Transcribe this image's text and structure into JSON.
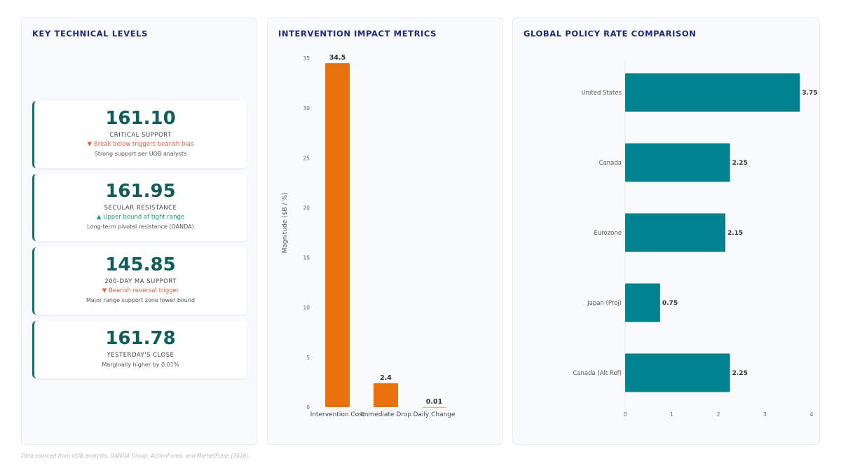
{
  "levels_panel": {
    "title": "KEY TECHNICAL LEVELS",
    "cards": [
      {
        "value": "161.10",
        "label": "CRITICAL SUPPORT",
        "signal": "▼ Break below triggers bearish bias",
        "signal_dir": "down",
        "note": "Strong support per UOB analysts"
      },
      {
        "value": "161.95",
        "label": "SECULAR RESISTANCE",
        "signal": "▲ Upper bound of tight range",
        "signal_dir": "up",
        "note": "Long-term pivotal resistance (OANDA)"
      },
      {
        "value": "145.85",
        "label": "200-DAY MA SUPPORT",
        "signal": "▼ Bearish reversal trigger",
        "signal_dir": "down",
        "note": "Major range support zone lower bound"
      },
      {
        "value": "161.78",
        "label": "YESTERDAY'S CLOSE",
        "signal": "",
        "signal_dir": "",
        "note": "Marginally higher by 0.01%"
      }
    ]
  },
  "impact_panel": {
    "title": "INTERVENTION IMPACT METRICS"
  },
  "policy_panel": {
    "title": "GLOBAL POLICY RATE COMPARISON"
  },
  "footer": "Data sourced from UOB analysts, OANDA Group, ActionForex, and MarketPulse (2026).",
  "chart_data": [
    {
      "type": "bar",
      "title": "INTERVENTION IMPACT METRICS",
      "categories": [
        "Intervention Cost",
        "Immediate Drop",
        "Daily Change"
      ],
      "values": [
        34.5,
        2.4,
        0.01
      ],
      "data_labels": [
        "34.5",
        "2.4",
        "0.01"
      ],
      "xlabel": "",
      "ylabel": "Magnitude ($B / %)",
      "ylim": [
        0,
        35
      ],
      "yticks": [
        0,
        5,
        10,
        15,
        20,
        25,
        30,
        35
      ],
      "bar_color": "#e8700d",
      "grid": false
    },
    {
      "type": "bar",
      "orientation": "horizontal",
      "title": "GLOBAL POLICY RATE COMPARISON",
      "categories": [
        "United States",
        "Canada",
        "Eurozone",
        "Japan (Proj)",
        "Canada (Alt Ref)"
      ],
      "values": [
        3.75,
        2.25,
        2.15,
        0.75,
        2.25
      ],
      "data_labels": [
        "3.75",
        "2.25",
        "2.15",
        "0.75",
        "2.25"
      ],
      "xlabel": "",
      "ylabel": "",
      "xlim": [
        0,
        4
      ],
      "xticks": [
        0,
        1,
        2,
        3,
        4
      ],
      "bar_color": "#00838f",
      "grid": false
    }
  ]
}
